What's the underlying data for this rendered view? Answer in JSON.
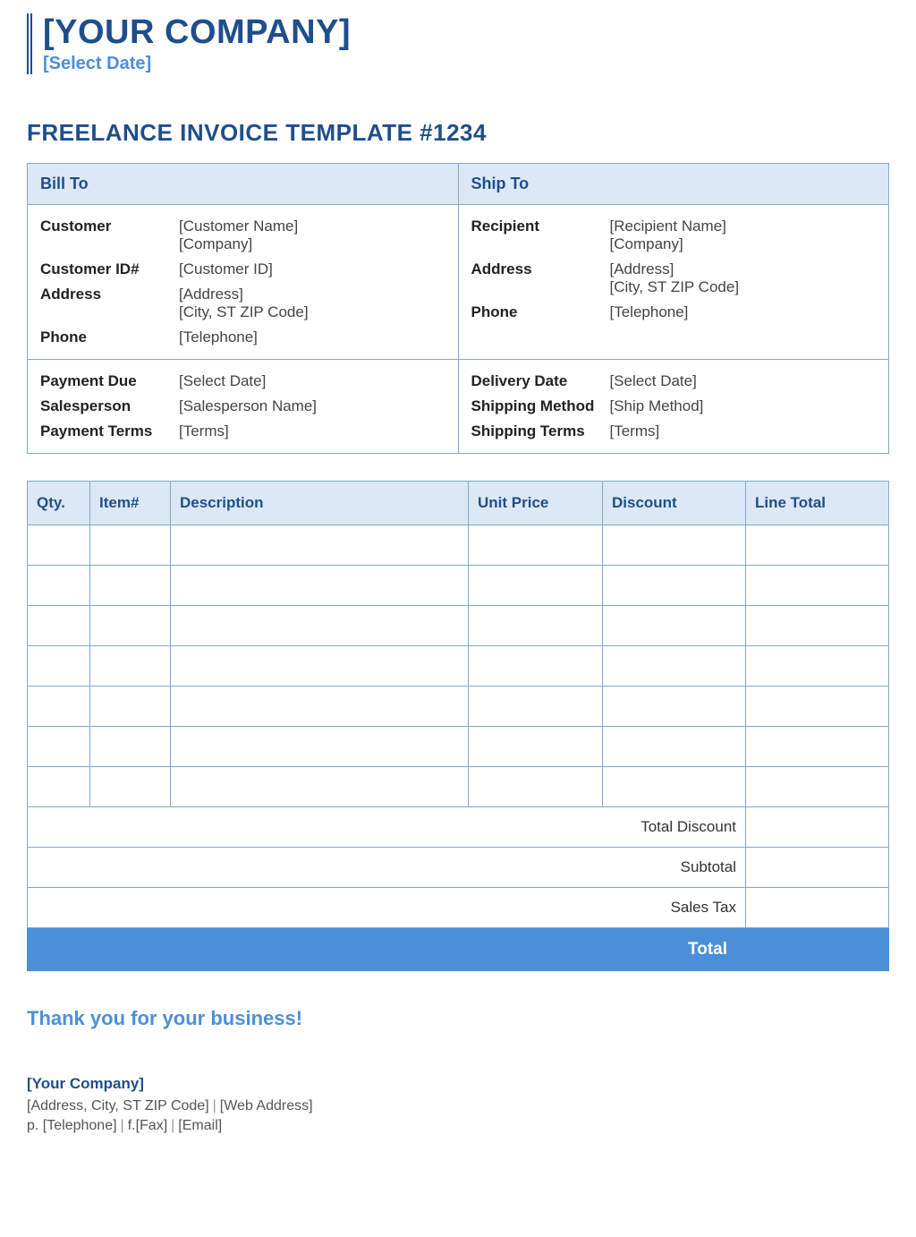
{
  "header": {
    "company_name": "[YOUR COMPANY]",
    "date_placeholder": "[Select Date]"
  },
  "title": "FREELANCE INVOICE TEMPLATE #1234",
  "bill_to": {
    "heading": "Bill To",
    "customer_label": "Customer",
    "customer_name": "[Customer Name]",
    "customer_company": "[Company]",
    "customer_id_label": "Customer ID#",
    "customer_id": "[Customer ID]",
    "address_label": "Address",
    "address": "[Address]",
    "address2": "[City, ST  ZIP Code]",
    "phone_label": "Phone",
    "phone": "[Telephone]"
  },
  "ship_to": {
    "heading": "Ship To",
    "recipient_label": "Recipient",
    "recipient_name": "[Recipient Name]",
    "recipient_company": "[Company]",
    "address_label": "Address",
    "address": "[Address]",
    "address2": "[City, ST  ZIP Code]",
    "phone_label": "Phone",
    "phone": "[Telephone]"
  },
  "payment": {
    "due_label": "Payment Due",
    "due_value": "[Select Date]",
    "salesperson_label": "Salesperson",
    "salesperson_value": "[Salesperson Name]",
    "terms_label": "Payment Terms",
    "terms_value": "[Terms]"
  },
  "delivery": {
    "date_label": "Delivery Date",
    "date_value": "[Select Date]",
    "method_label": "Shipping Method",
    "method_value": "[Ship Method]",
    "terms_label": "Shipping Terms",
    "terms_value": "[Terms]"
  },
  "items": {
    "columns": {
      "qty": "Qty.",
      "item": "Item#",
      "description": "Description",
      "unit_price": "Unit Price",
      "discount": "Discount",
      "line_total": "Line Total"
    },
    "row_count": 7
  },
  "summary": {
    "total_discount": "Total Discount",
    "subtotal": "Subtotal",
    "sales_tax": "Sales Tax",
    "total": "Total"
  },
  "thank_you": "Thank you for your business!",
  "footer": {
    "company": "[Your Company]",
    "address": "[Address, City, ST  ZIP Code]",
    "web": "[Web Address]",
    "phone_prefix": "p. ",
    "phone": "[Telephone]",
    "fax_prefix": "f.",
    "fax": "[Fax]",
    "email": "[Email]"
  },
  "colors": {
    "primary_dark": "#1f4e8c",
    "primary_light": "#4a90d9",
    "header_bg": "#dce8f5",
    "border": "#7fa8d4"
  }
}
